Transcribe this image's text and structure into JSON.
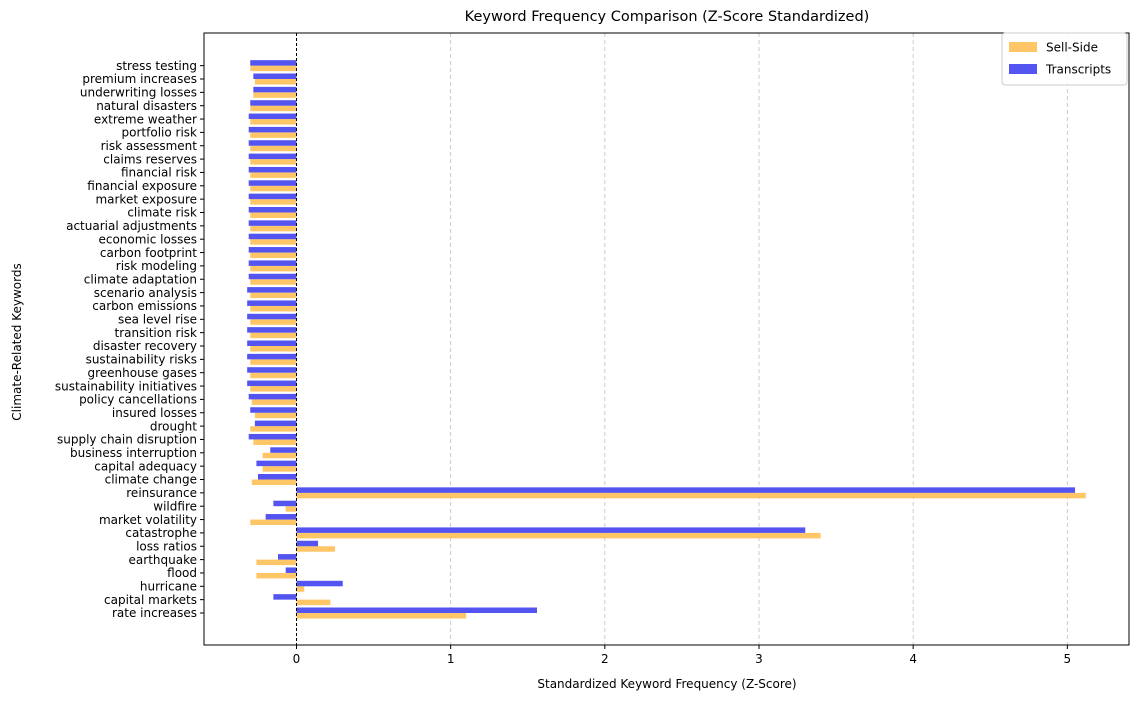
{
  "chart_data": {
    "type": "bar",
    "orientation": "horizontal",
    "title": "Keyword Frequency Comparison (Z-Score Standardized)",
    "xlabel": "Standardized Keyword Frequency (Z-Score)",
    "ylabel": "Climate-Related Keywords",
    "xlim": [
      -0.6,
      5.4
    ],
    "xticks": [
      0,
      1,
      2,
      3,
      4,
      5
    ],
    "grid": "x-dashed",
    "legend_placement": "top-right",
    "reference_line_x": 0,
    "categories": [
      "rate increases",
      "capital markets",
      "hurricane",
      "flood",
      "earthquake",
      "loss ratios",
      "catastrophe",
      "market volatility",
      "wildfire",
      "reinsurance",
      "climate change",
      "capital adequacy",
      "business interruption",
      "supply chain disruption",
      "drought",
      "insured losses",
      "policy cancellations",
      "sustainability initiatives",
      "greenhouse gases",
      "sustainability risks",
      "disaster recovery",
      "transition risk",
      "sea level rise",
      "carbon emissions",
      "scenario analysis",
      "climate adaptation",
      "risk modeling",
      "carbon footprint",
      "economic losses",
      "actuarial adjustments",
      "climate risk",
      "market exposure",
      "financial exposure",
      "financial risk",
      "claims reserves",
      "risk assessment",
      "portfolio risk",
      "extreme weather",
      "natural disasters",
      "underwriting losses",
      "premium increases",
      "stress testing"
    ],
    "series": [
      {
        "name": "Sell-Side",
        "color": "#ffbc4d",
        "values": [
          1.1,
          0.22,
          0.05,
          -0.26,
          -0.26,
          0.25,
          3.4,
          -0.3,
          -0.07,
          5.12,
          -0.29,
          -0.22,
          -0.22,
          -0.28,
          -0.3,
          -0.27,
          -0.29,
          -0.3,
          -0.3,
          -0.3,
          -0.3,
          -0.3,
          -0.3,
          -0.3,
          -0.3,
          -0.3,
          -0.3,
          -0.3,
          -0.3,
          -0.3,
          -0.3,
          -0.3,
          -0.3,
          -0.3,
          -0.3,
          -0.3,
          -0.3,
          -0.3,
          -0.3,
          -0.28,
          -0.27,
          -0.3
        ]
      },
      {
        "name": "Transcripts",
        "color": "#4b4bef",
        "values": [
          1.56,
          -0.15,
          0.3,
          -0.07,
          -0.12,
          0.14,
          3.3,
          -0.2,
          -0.15,
          5.05,
          -0.25,
          -0.26,
          -0.17,
          -0.31,
          -0.27,
          -0.3,
          -0.31,
          -0.32,
          -0.32,
          -0.32,
          -0.32,
          -0.32,
          -0.32,
          -0.32,
          -0.32,
          -0.31,
          -0.31,
          -0.31,
          -0.31,
          -0.31,
          -0.31,
          -0.31,
          -0.31,
          -0.31,
          -0.31,
          -0.31,
          -0.31,
          -0.31,
          -0.3,
          -0.28,
          -0.28,
          -0.3
        ]
      }
    ]
  }
}
